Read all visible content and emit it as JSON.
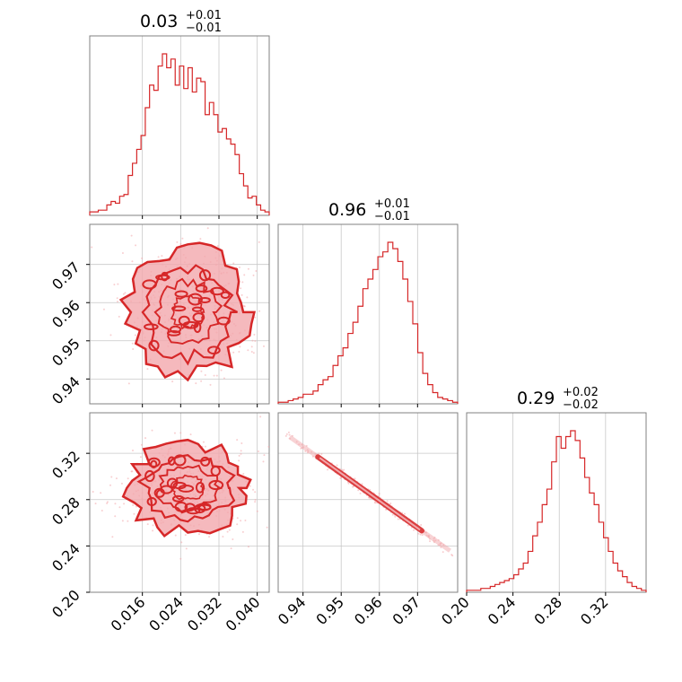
{
  "chart_data": {
    "type": "corner",
    "color": "#d62728",
    "fill_color": "#f2a8ac",
    "grid_color": "#c8c8c8",
    "frame_color": "#808080",
    "parameters": [
      {
        "median": "0.03",
        "upper": "+0.01",
        "lower": "−0.01",
        "range": [
          0.005,
          0.0425
        ],
        "ticks": [
          0.016,
          0.024,
          0.032,
          0.04
        ],
        "tick_labels": [
          "0.016",
          "0.024",
          "0.032",
          "0.040"
        ]
      },
      {
        "median": "0.96",
        "upper": "+0.01",
        "lower": "−0.01",
        "range": [
          0.9335,
          0.9805
        ],
        "ticks": [
          0.94,
          0.95,
          0.96,
          0.97
        ],
        "tick_labels": [
          "0.94",
          "0.95",
          "0.96",
          "0.97"
        ]
      },
      {
        "median": "0.29",
        "upper": "+0.02",
        "lower": "−0.02",
        "range": [
          0.2,
          0.355
        ],
        "ticks": [
          0.2,
          0.24,
          0.28,
          0.32
        ],
        "tick_labels": [
          "0.20",
          "0.24",
          "0.28",
          "0.32"
        ]
      }
    ],
    "histograms": [
      {
        "param": 0,
        "counts": [
          2,
          2,
          3,
          3,
          6,
          8,
          7,
          11,
          12,
          23,
          30,
          38,
          46,
          62,
          75,
          72,
          86,
          93,
          85,
          90,
          75,
          86,
          73,
          85,
          71,
          79,
          77,
          58,
          65,
          58,
          48,
          50,
          44,
          41,
          35,
          24,
          17,
          10,
          11,
          6,
          3,
          2
        ]
      },
      {
        "param": 1,
        "counts": [
          1,
          1,
          2,
          3,
          4,
          6,
          6,
          8,
          12,
          15,
          17,
          24,
          30,
          35,
          44,
          51,
          61,
          72,
          78,
          84,
          92,
          95,
          101,
          97,
          89,
          78,
          64,
          50,
          32,
          19,
          12,
          7,
          4,
          3,
          2,
          1
        ]
      },
      {
        "param": 2,
        "counts": [
          1,
          1,
          1,
          2,
          2,
          3,
          4,
          5,
          6,
          7,
          9,
          12,
          15,
          21,
          29,
          36,
          45,
          53,
          67,
          80,
          74,
          80,
          83,
          78,
          69,
          59,
          51,
          45,
          36,
          28,
          21,
          15,
          11,
          8,
          5,
          3,
          2,
          1
        ]
      }
    ],
    "pairs": [
      {
        "x_param": 0,
        "y_param": 1,
        "center": [
          0.0255,
          0.9575
        ],
        "sigma": [
          0.0065,
          0.0085
        ],
        "rho": 0.0
      },
      {
        "x_param": 0,
        "y_param": 2,
        "center": [
          0.0255,
          0.29
        ],
        "sigma": [
          0.0065,
          0.02
        ],
        "rho": 0.0
      },
      {
        "x_param": 1,
        "y_param": 2,
        "center": [
          0.9575,
          0.285
        ],
        "sigma": [
          0.0085,
          0.02
        ],
        "rho": -0.995
      }
    ]
  }
}
